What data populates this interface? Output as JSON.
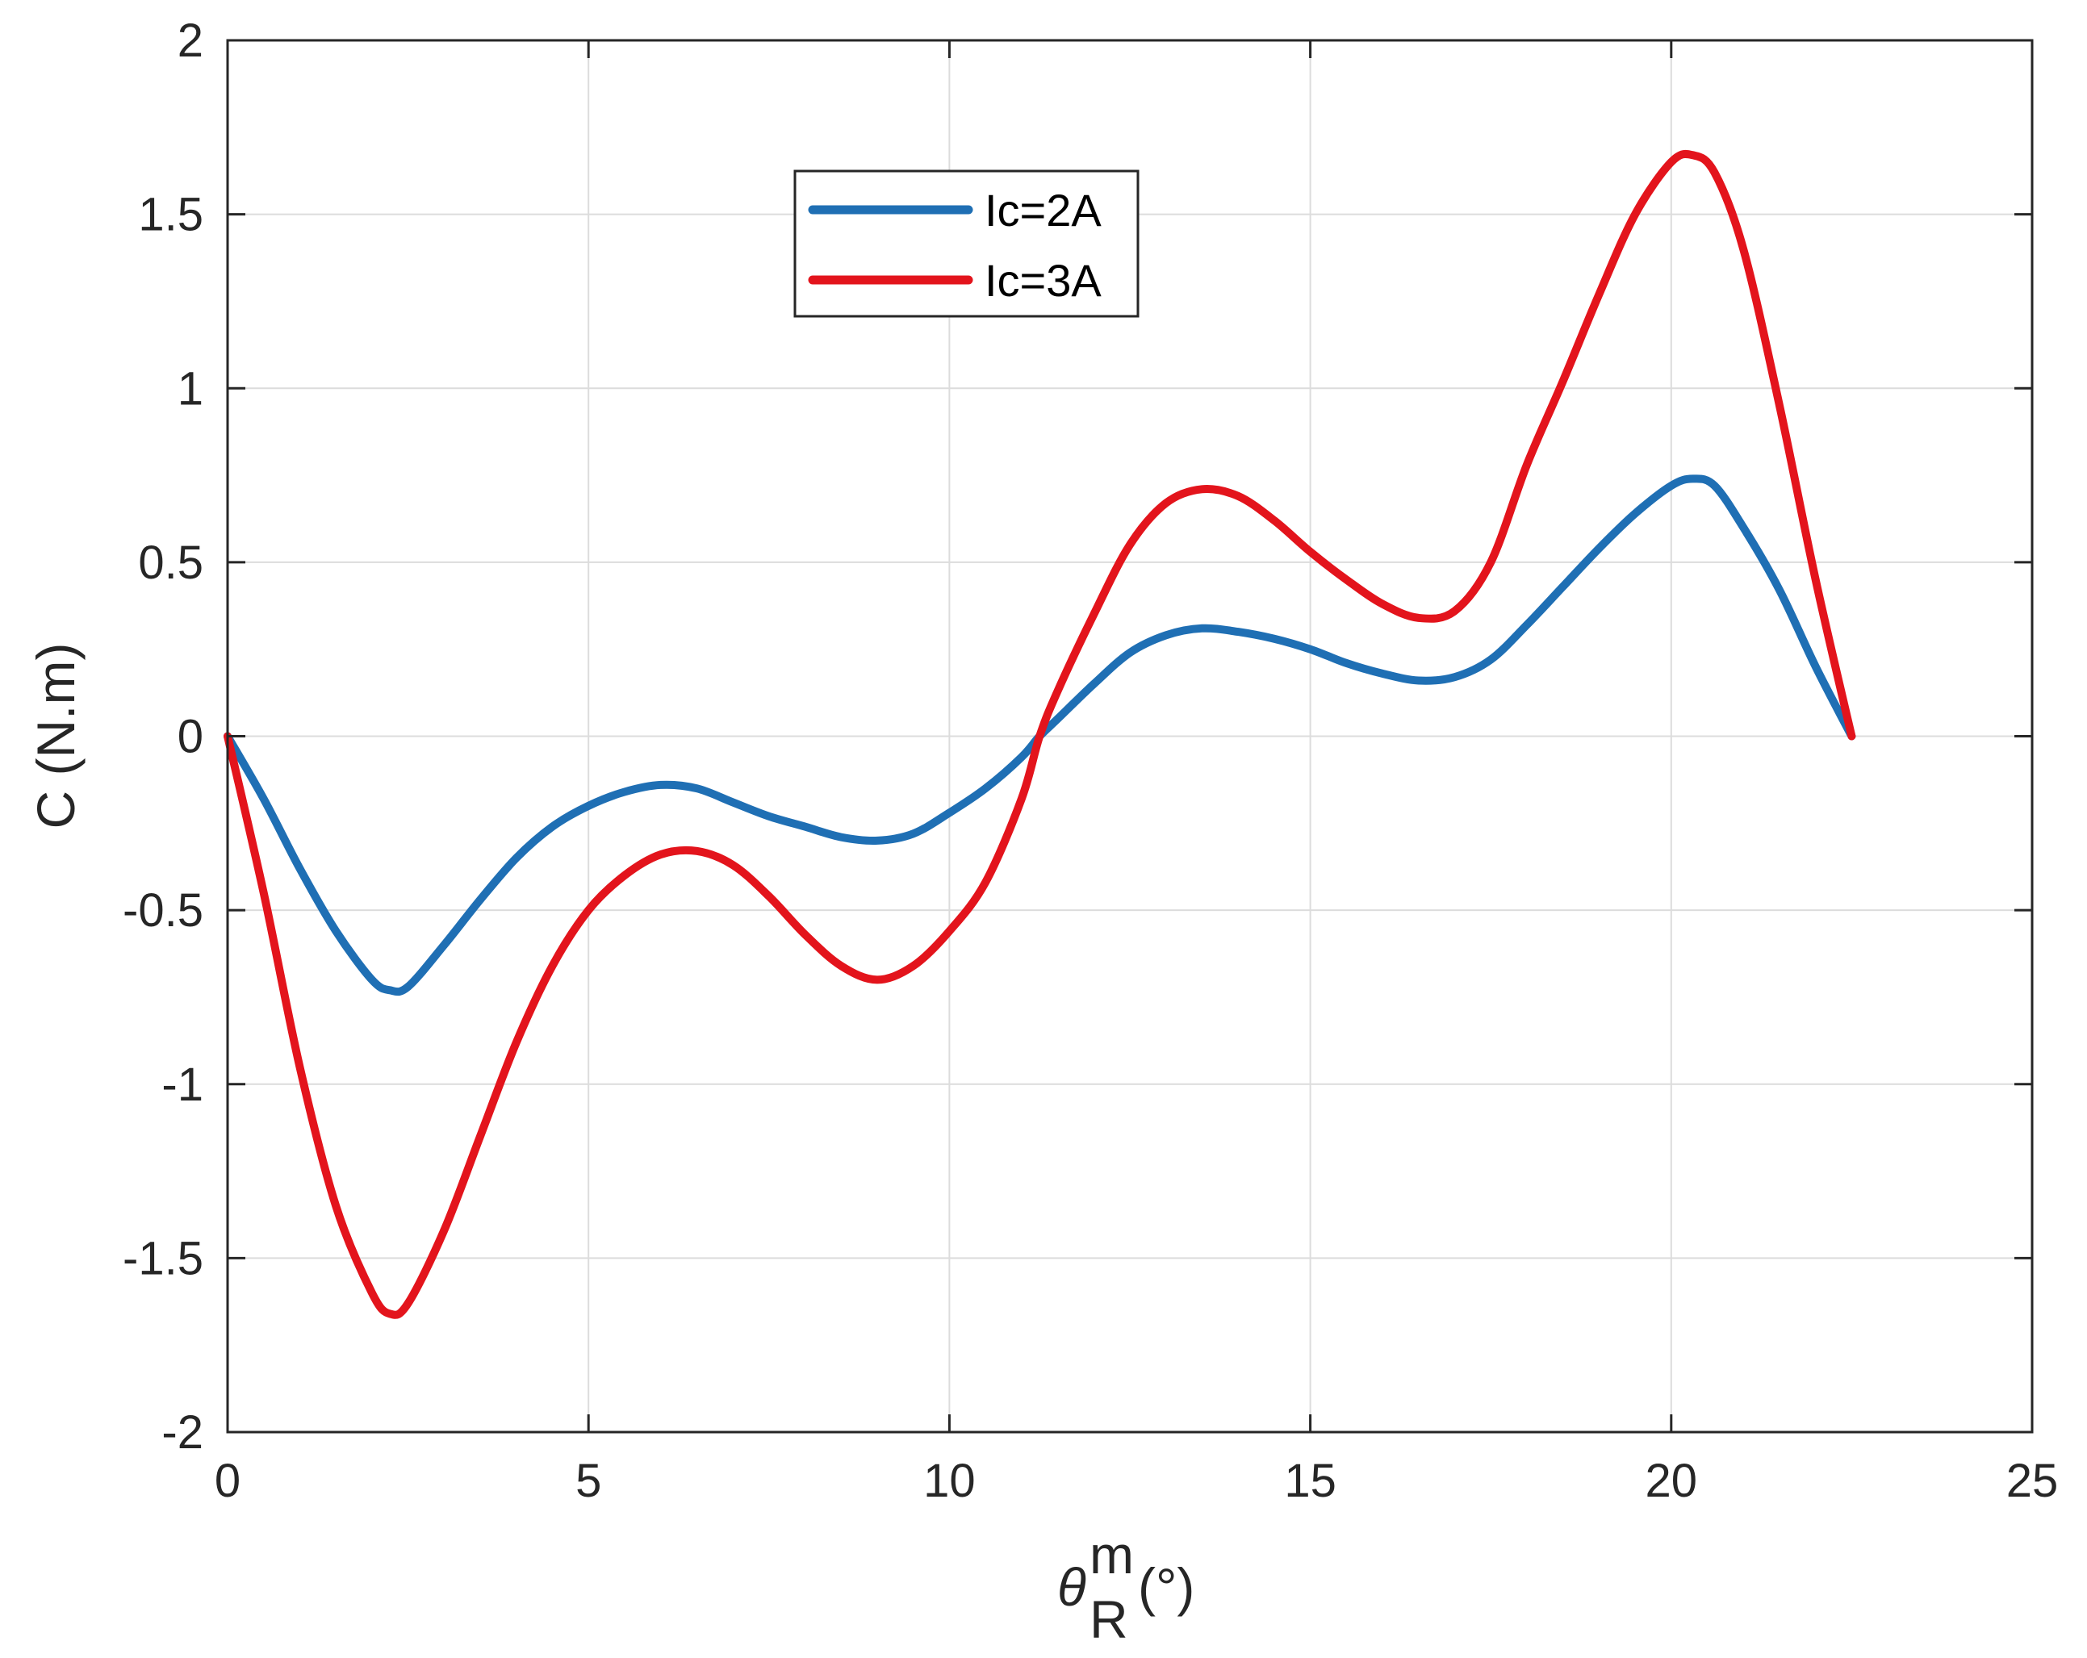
{
  "chart_data": {
    "type": "line",
    "title": "",
    "xlabel": {
      "symbol": "θ",
      "superscript": "m",
      "subscript": "R",
      "unit": "(°)"
    },
    "ylabel": "C (N.m)",
    "xlim": [
      0,
      25
    ],
    "ylim": [
      -2,
      2
    ],
    "xticks": [
      0,
      5,
      10,
      15,
      20,
      25
    ],
    "yticks": [
      -2,
      -1.5,
      -1,
      -0.5,
      0,
      0.5,
      1,
      1.5,
      2
    ],
    "xtick_labels": [
      "0",
      "5",
      "10",
      "15",
      "20",
      "25"
    ],
    "ytick_labels": [
      "-2",
      "-1.5",
      "-1",
      "-0.5",
      "0",
      "0.5",
      "1",
      "1.5",
      "2"
    ],
    "grid": true,
    "legend_position": "top-center",
    "series": [
      {
        "name": "Ic=2A",
        "color": "#1f6fb4",
        "x": [
          0,
          0.5,
          1,
          1.5,
          2,
          2.25,
          2.5,
          3,
          3.5,
          4,
          4.5,
          5,
          5.5,
          6,
          6.5,
          7,
          7.5,
          8,
          8.5,
          9,
          9.5,
          10,
          10.5,
          11,
          11.25,
          11.5,
          12,
          12.5,
          13,
          13.5,
          14,
          14.5,
          15,
          15.5,
          16,
          16.5,
          17,
          17.5,
          18,
          18.5,
          19,
          19.5,
          20,
          20.3,
          20.6,
          21,
          21.5,
          22,
          22.5
        ],
        "y": [
          0,
          -0.18,
          -0.38,
          -0.56,
          -0.7,
          -0.73,
          -0.72,
          -0.6,
          -0.47,
          -0.35,
          -0.26,
          -0.2,
          -0.16,
          -0.14,
          -0.15,
          -0.19,
          -0.23,
          -0.26,
          -0.29,
          -0.3,
          -0.28,
          -0.22,
          -0.15,
          -0.06,
          0.0,
          0.05,
          0.15,
          0.24,
          0.29,
          0.31,
          0.3,
          0.28,
          0.25,
          0.21,
          0.18,
          0.16,
          0.17,
          0.22,
          0.32,
          0.43,
          0.54,
          0.64,
          0.72,
          0.74,
          0.72,
          0.6,
          0.42,
          0.2,
          0
        ]
      },
      {
        "name": "Ic=3A",
        "color": "#e3141c",
        "x": [
          0,
          0.5,
          1,
          1.5,
          2,
          2.25,
          2.5,
          3,
          3.5,
          4,
          4.5,
          5,
          5.5,
          6,
          6.5,
          7,
          7.5,
          8,
          8.5,
          9,
          9.5,
          10,
          10.5,
          11,
          11.25,
          11.5,
          12,
          12.5,
          13,
          13.5,
          14,
          14.5,
          15,
          15.5,
          16,
          16.5,
          17,
          17.5,
          18,
          18.5,
          19,
          19.5,
          20,
          20.3,
          20.6,
          21,
          21.5,
          22,
          22.5
        ],
        "y": [
          0,
          -0.45,
          -0.95,
          -1.35,
          -1.6,
          -1.66,
          -1.63,
          -1.42,
          -1.15,
          -0.88,
          -0.66,
          -0.5,
          -0.4,
          -0.34,
          -0.33,
          -0.37,
          -0.46,
          -0.57,
          -0.66,
          -0.7,
          -0.66,
          -0.56,
          -0.42,
          -0.18,
          0.0,
          0.13,
          0.35,
          0.55,
          0.67,
          0.71,
          0.69,
          0.62,
          0.53,
          0.45,
          0.38,
          0.34,
          0.36,
          0.5,
          0.78,
          1.02,
          1.27,
          1.5,
          1.65,
          1.67,
          1.62,
          1.4,
          0.95,
          0.45,
          0
        ]
      }
    ]
  }
}
